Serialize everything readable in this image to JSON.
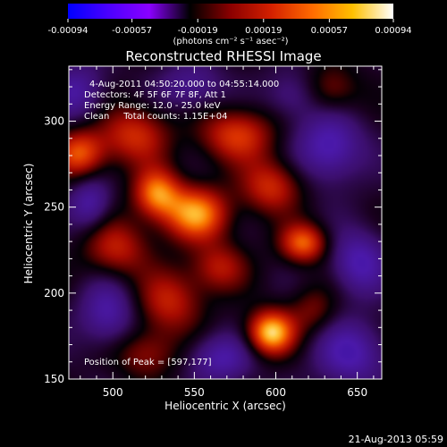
{
  "colorbar": {
    "tick_labels": [
      "-0.00094",
      "-0.00057",
      "-0.00019",
      "0.00019",
      "0.00057",
      "0.00094"
    ],
    "tick_values": [
      -0.00094,
      -0.00057,
      -0.00019,
      0.00019,
      0.00057,
      0.00094
    ],
    "range": [
      -0.00094,
      0.00094
    ],
    "units_label": "(photons cm⁻² s⁻¹ asec⁻²)",
    "colors": [
      "#0000ff",
      "#4b00ff",
      "#8a00ff",
      "#000000",
      "#8b0000",
      "#d42000",
      "#ff6a00",
      "#ffc000",
      "#ffffff"
    ]
  },
  "chart_data": {
    "type": "heatmap",
    "title": "Reconstructed RHESSI Image",
    "xlabel": "Heliocentric X (arcsec)",
    "ylabel": "Heliocentric Y (arcsec)",
    "xlim": [
      473,
      665
    ],
    "ylim": [
      150,
      332
    ],
    "x_ticks": [
      500,
      550,
      600,
      650
    ],
    "y_ticks": [
      150,
      200,
      250,
      300
    ],
    "x_tick_labels": [
      "500",
      "550",
      "600",
      "650"
    ],
    "y_tick_labels": [
      "150",
      "200",
      "250",
      "300"
    ],
    "annotations": {
      "time": "4-Aug-2011 04:50:20.000 to 04:55:14.000",
      "detectors": "Detectors: 4F 5F 6F 7F 8F, Att 1",
      "energy": "Energy Range: 12.0 - 25.0 keV",
      "clean": "Clean     Total counts: 1.15E+04",
      "peak": "Position of Peak = [597,177]"
    },
    "peak": [
      597,
      177
    ],
    "blobs": [
      {
        "x": 597,
        "y": 177,
        "sx": 10,
        "sy": 9,
        "a": 1.0
      },
      {
        "x": 551,
        "y": 246,
        "sx": 14,
        "sy": 11,
        "a": 0.85
      },
      {
        "x": 527,
        "y": 258,
        "sx": 10,
        "sy": 10,
        "a": 0.78
      },
      {
        "x": 480,
        "y": 281,
        "sx": 11,
        "sy": 10,
        "a": 0.68
      },
      {
        "x": 513,
        "y": 292,
        "sx": 15,
        "sy": 12,
        "a": 0.55
      },
      {
        "x": 617,
        "y": 229,
        "sx": 10,
        "sy": 8,
        "a": 0.72
      },
      {
        "x": 576,
        "y": 292,
        "sx": 16,
        "sy": 11,
        "a": 0.6
      },
      {
        "x": 597,
        "y": 262,
        "sx": 13,
        "sy": 11,
        "a": 0.55
      },
      {
        "x": 535,
        "y": 195,
        "sx": 14,
        "sy": 13,
        "a": 0.5
      },
      {
        "x": 502,
        "y": 226,
        "sx": 14,
        "sy": 12,
        "a": 0.5
      },
      {
        "x": 565,
        "y": 215,
        "sx": 12,
        "sy": 10,
        "a": 0.45
      },
      {
        "x": 634,
        "y": 318,
        "sx": 12,
        "sy": 10,
        "a": 0.35
      },
      {
        "x": 520,
        "y": 165,
        "sx": 14,
        "sy": 10,
        "a": 0.38
      },
      {
        "x": 623,
        "y": 190,
        "sx": 10,
        "sy": 10,
        "a": 0.3
      },
      {
        "x": 633,
        "y": 285,
        "sx": 14,
        "sy": 14,
        "a": -0.55
      },
      {
        "x": 651,
        "y": 218,
        "sx": 12,
        "sy": 13,
        "a": -0.5
      },
      {
        "x": 497,
        "y": 188,
        "sx": 12,
        "sy": 14,
        "a": -0.45
      },
      {
        "x": 478,
        "y": 317,
        "sx": 12,
        "sy": 12,
        "a": -0.4
      },
      {
        "x": 566,
        "y": 162,
        "sx": 14,
        "sy": 10,
        "a": -0.45
      },
      {
        "x": 646,
        "y": 165,
        "sx": 15,
        "sy": 13,
        "a": -0.5
      },
      {
        "x": 486,
        "y": 252,
        "sx": 9,
        "sy": 11,
        "a": -0.45
      },
      {
        "x": 548,
        "y": 320,
        "sx": 14,
        "sy": 10,
        "a": -0.35
      },
      {
        "x": 610,
        "y": 315,
        "sx": 12,
        "sy": 10,
        "a": -0.3
      }
    ]
  },
  "footer": {
    "timestamp": "21-Aug-2013 05:59"
  }
}
